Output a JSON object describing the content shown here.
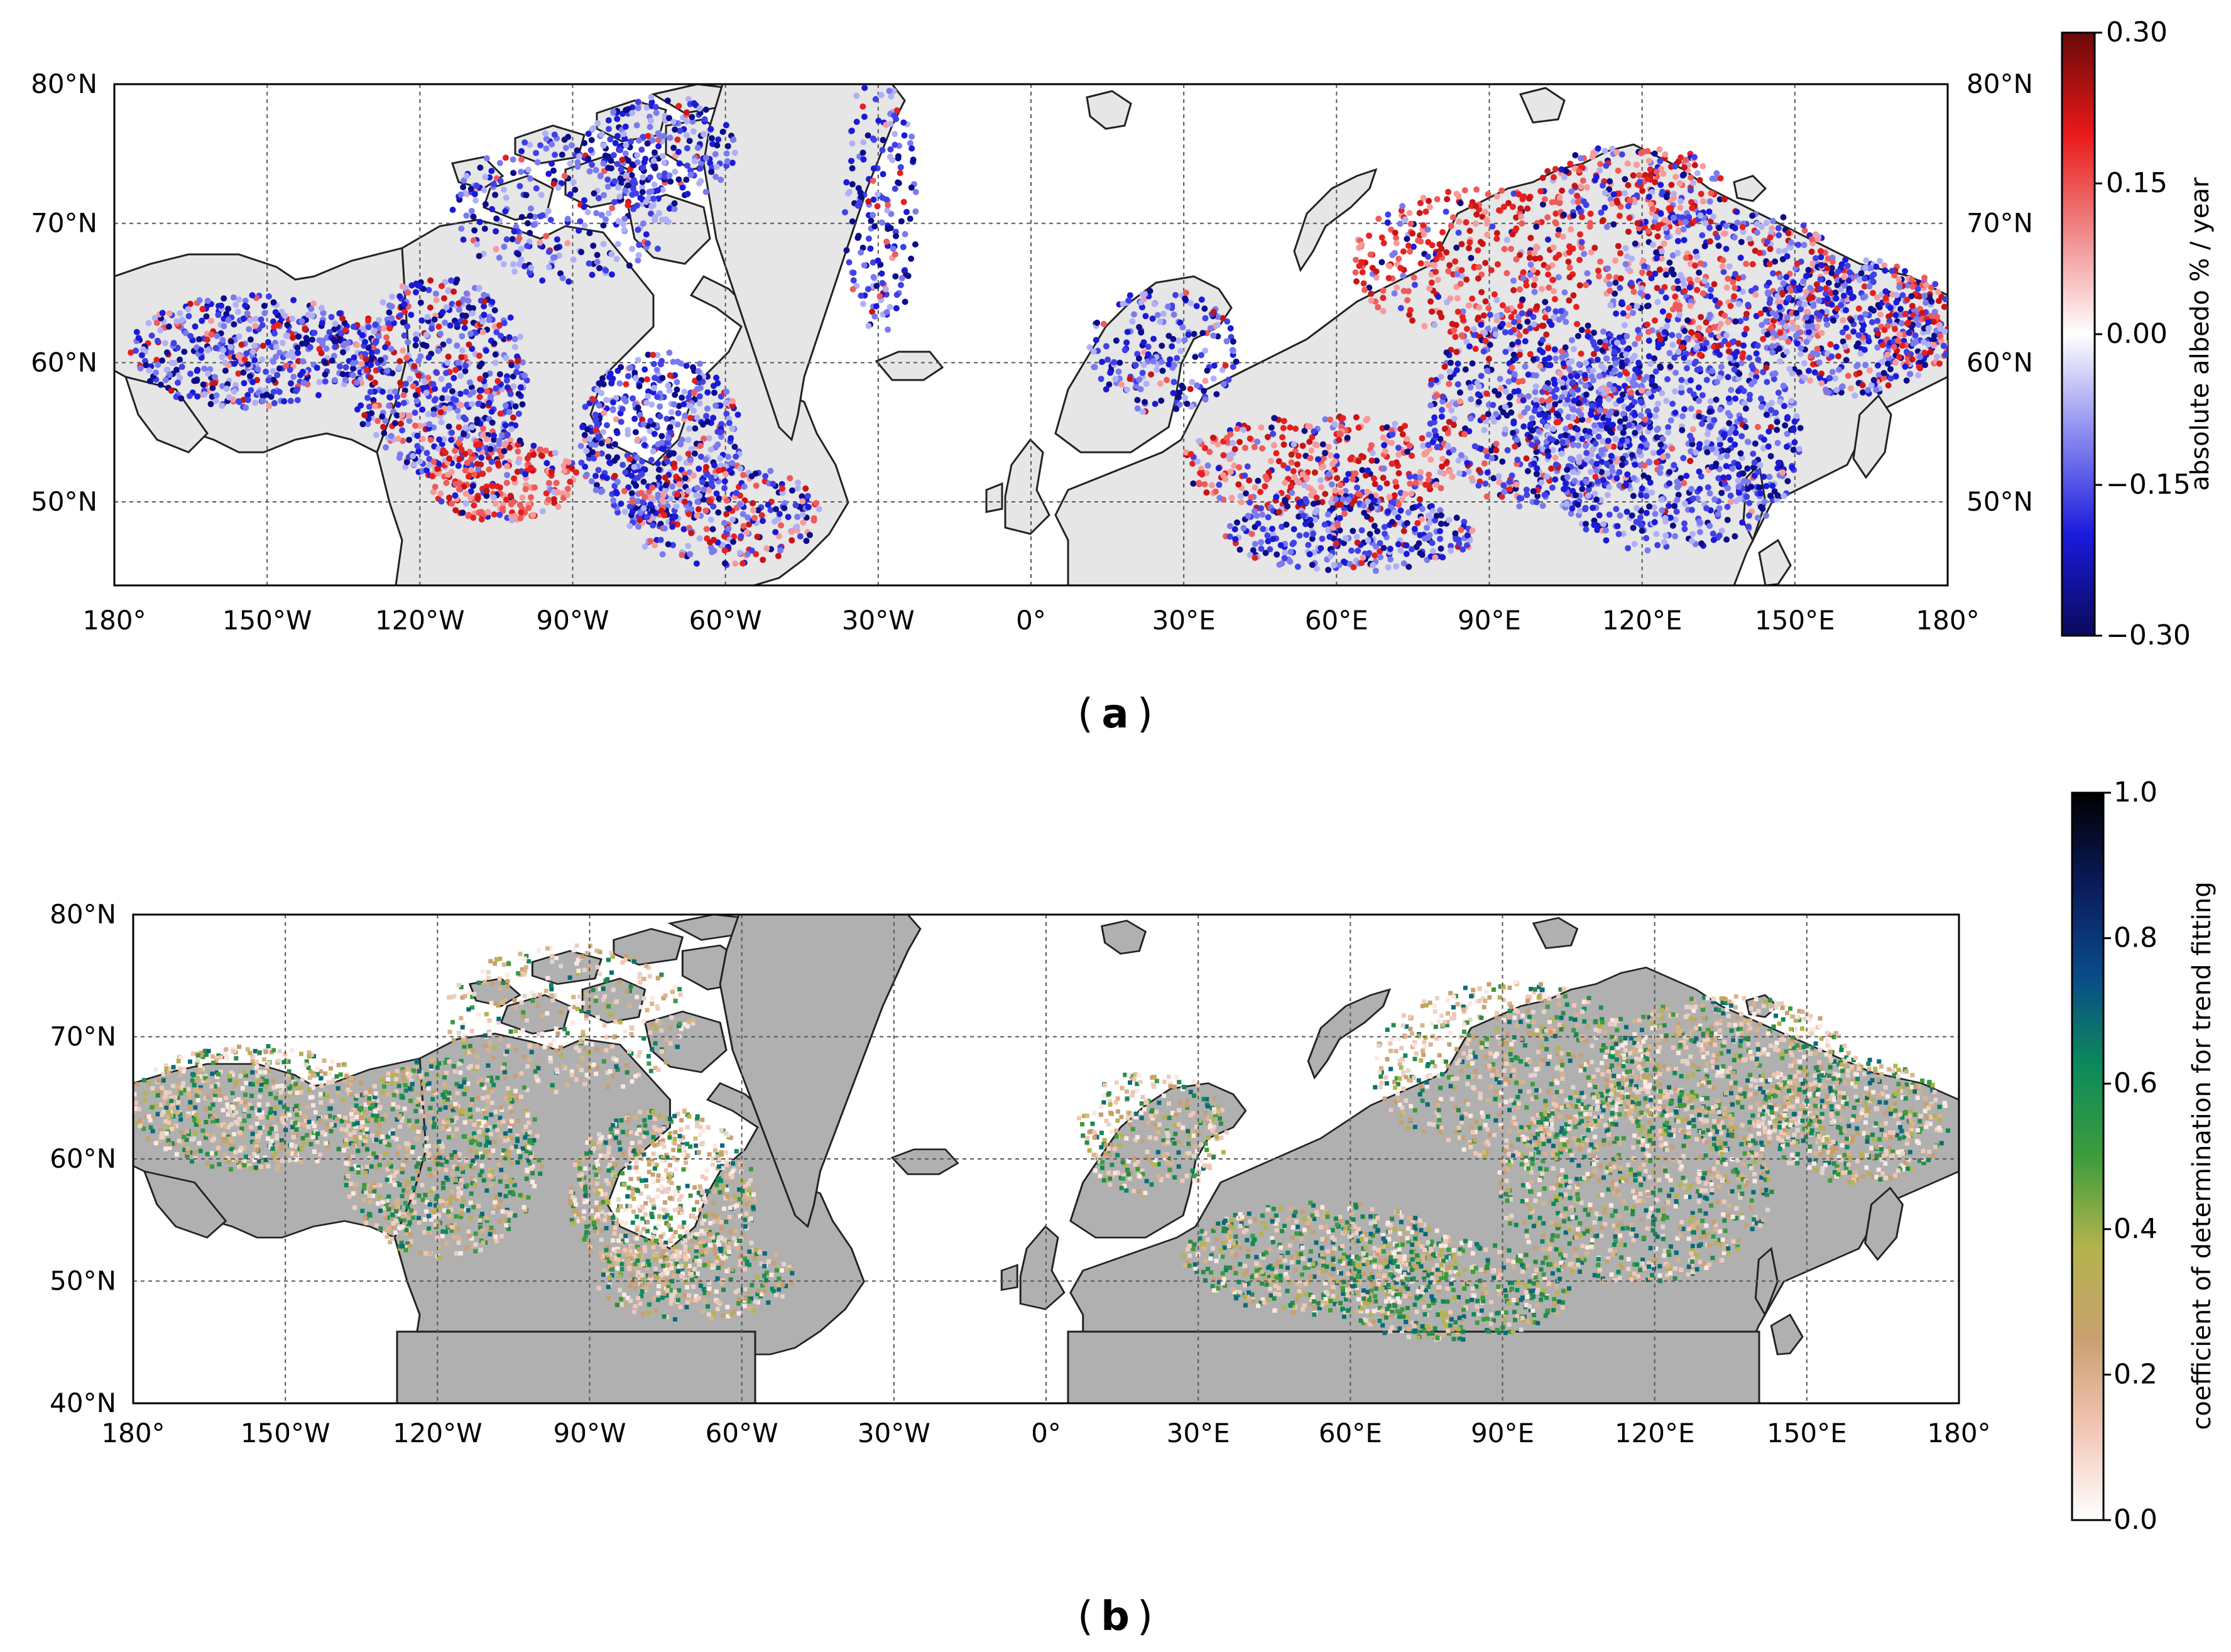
{
  "panels": [
    {
      "id": "a",
      "caption_letter": "a",
      "lon_ticks": [
        "180°",
        "150°W",
        "120°W",
        "90°W",
        "60°W",
        "30°W",
        "0°",
        "30°E",
        "60°E",
        "90°E",
        "120°E",
        "150°E",
        "180°"
      ],
      "lat_ticks_left": [
        "80°N",
        "70°N",
        "60°N",
        "50°N"
      ],
      "lat_ticks_right": [
        "80°N",
        "70°N",
        "60°N",
        "50°N"
      ],
      "lat_values": [
        80,
        70,
        60,
        50
      ],
      "lat_range": [
        44,
        80
      ],
      "colorbar": {
        "label": "absolute albedo % / year",
        "ticks": [
          "0.30",
          "0.15",
          "0.00",
          "−0.15",
          "−0.30"
        ],
        "tick_values": [
          0.3,
          0.15,
          0.0,
          -0.15,
          -0.3
        ],
        "range": [
          -0.3,
          0.3
        ],
        "colors": [
          "#0a0a5a",
          "#1a1adc",
          "#8a8af0",
          "#ffffff",
          "#f08a8a",
          "#e81818",
          "#6a0a0a"
        ]
      }
    },
    {
      "id": "b",
      "caption_letter": "b",
      "lon_ticks": [
        "180°",
        "150°W",
        "120°W",
        "90°W",
        "60°W",
        "30°W",
        "0°",
        "30°E",
        "60°E",
        "90°E",
        "120°E",
        "150°E",
        "180°"
      ],
      "lat_ticks_left": [
        "80°N",
        "70°N",
        "60°N",
        "50°N",
        "40°N"
      ],
      "lat_values": [
        80,
        70,
        60,
        50,
        40
      ],
      "lat_range": [
        40,
        80
      ],
      "colorbar": {
        "label": "coefficient of determination for trend fitting",
        "ticks": [
          "1.0",
          "0.8",
          "0.6",
          "0.4",
          "0.2",
          "0.0"
        ],
        "tick_values": [
          1.0,
          0.8,
          0.6,
          0.4,
          0.2,
          0.0
        ],
        "range": [
          0.0,
          1.0
        ],
        "colors": [
          "#ffffff",
          "#f2c6b6",
          "#c8a070",
          "#b4b44c",
          "#3c9c3c",
          "#0c8a5a",
          "#0a4a8a",
          "#0a1a5a",
          "#000000"
        ]
      }
    }
  ],
  "colors": {
    "land": "#e6e6e6",
    "land_b": "#b0b0b0",
    "greenland_a": "#e4e4e4",
    "greenland_b": "#aaaaaa"
  }
}
